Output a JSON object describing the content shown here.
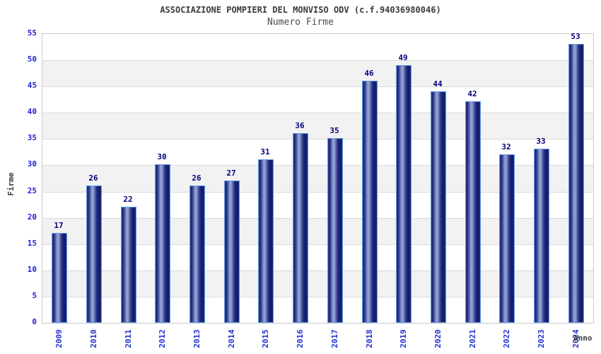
{
  "chart_data": {
    "type": "bar",
    "title": "ASSOCIAZIONE POMPIERI DEL MONVISO ODV (c.f.94036980046)",
    "subtitle": "Numero Firme",
    "xlabel": "Anno",
    "ylabel": "Firme",
    "categories": [
      "2009",
      "2010",
      "2011",
      "2012",
      "2013",
      "2014",
      "2015",
      "2016",
      "2017",
      "2018",
      "2019",
      "2020",
      "2021",
      "2022",
      "2023",
      "2024"
    ],
    "values": [
      17,
      26,
      22,
      30,
      26,
      27,
      31,
      36,
      35,
      46,
      49,
      44,
      42,
      32,
      33,
      53
    ],
    "ylim": [
      0,
      55
    ],
    "ytick_step": 5,
    "grid": true,
    "legend_position": "none",
    "colors": {
      "bar_dark": "#141d6e",
      "bar_highlight": "#9ba7db",
      "bar_border": "#5f9de8",
      "value_label": "#00007d",
      "y_tick_label": "#2222d6",
      "x_tick_label": "#2233cc",
      "axis_title": "#3b3b3b",
      "chart_title": "#3b3b3b",
      "band_alt": "#f2f2f2",
      "gridline": "#dadada",
      "plot_border": "#c9c9c9",
      "background": "#ffffff"
    }
  }
}
